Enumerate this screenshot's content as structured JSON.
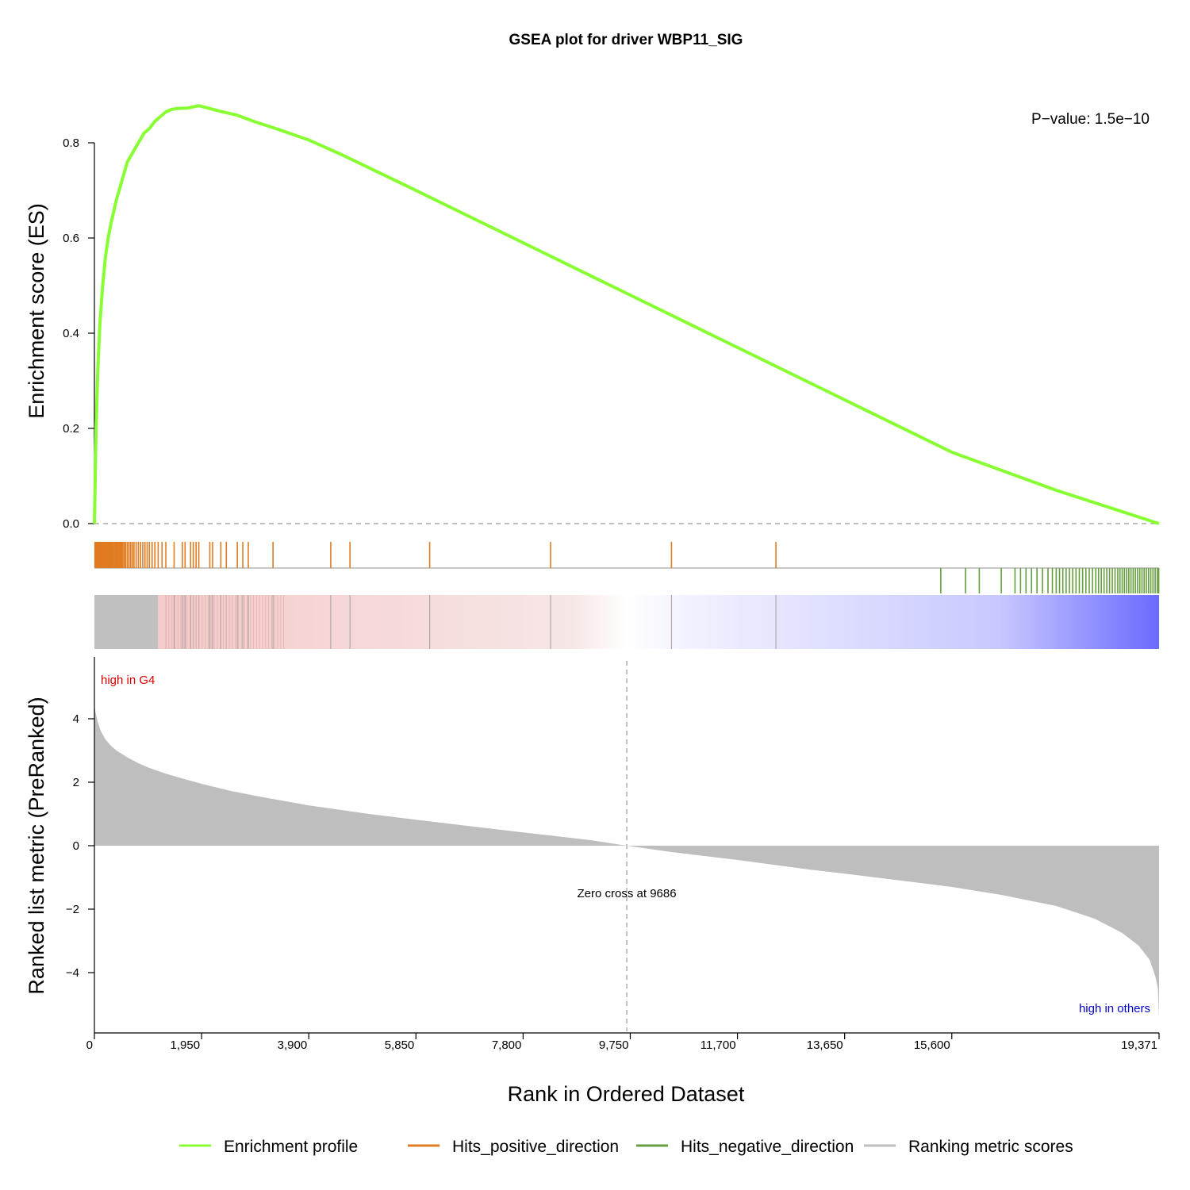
{
  "chart_data": {
    "type": "line",
    "title": "GSEA plot for driver WBP11_SIG",
    "pvalue_text": "P−value: 1.5e−10",
    "es_axis": {
      "label": "Enrichment score (ES)",
      "ylim": [
        0,
        0.88
      ],
      "ticks": [
        "0.0",
        "0.2",
        "0.4",
        "0.6",
        "0.8"
      ]
    },
    "es_profile": {
      "x": [
        0,
        30,
        60,
        100,
        150,
        200,
        250,
        300,
        400,
        500,
        600,
        700,
        800,
        900,
        1000,
        1100,
        1200,
        1300,
        1400,
        1500,
        1700,
        1900,
        2100,
        2300,
        2600,
        2900,
        3300,
        3900,
        4500,
        5850,
        7800,
        9750,
        11700,
        13650,
        15600,
        17500,
        19371
      ],
      "y": [
        0.0,
        0.2,
        0.32,
        0.42,
        0.5,
        0.56,
        0.6,
        0.63,
        0.68,
        0.72,
        0.76,
        0.78,
        0.8,
        0.82,
        0.83,
        0.845,
        0.855,
        0.865,
        0.87,
        0.872,
        0.873,
        0.878,
        0.872,
        0.866,
        0.858,
        0.845,
        0.83,
        0.806,
        0.775,
        0.7,
        0.59,
        0.48,
        0.37,
        0.26,
        0.15,
        0.07,
        0.0
      ]
    },
    "hits_positive": [
      10,
      20,
      30,
      40,
      50,
      60,
      70,
      80,
      95,
      110,
      125,
      140,
      155,
      170,
      185,
      200,
      215,
      230,
      245,
      260,
      275,
      290,
      305,
      320,
      340,
      360,
      380,
      400,
      420,
      440,
      460,
      480,
      500,
      520,
      545,
      570,
      600,
      630,
      660,
      690,
      720,
      760,
      800,
      840,
      880,
      920,
      960,
      1000,
      1050,
      1100,
      1160,
      1230,
      1300,
      1450,
      1600,
      1650,
      1750,
      1800,
      1850,
      1900,
      2100,
      2150,
      2300,
      2400,
      2600,
      2700,
      2800,
      3250,
      4300,
      4650,
      6100,
      8300,
      10500,
      12400
    ],
    "hits_negative": [
      15400,
      15850,
      16100,
      16500,
      16750,
      16850,
      16950,
      17050,
      17150,
      17250,
      17350,
      17430,
      17500,
      17560,
      17620,
      17680,
      17740,
      17800,
      17860,
      17920,
      17980,
      18040,
      18100,
      18160,
      18220,
      18270,
      18320,
      18370,
      18420,
      18470,
      18520,
      18570,
      18620,
      18660,
      18700,
      18740,
      18780,
      18820,
      18860,
      18900,
      18940,
      18980,
      19020,
      19060,
      19100,
      19140,
      19180,
      19220,
      19260,
      19300,
      19340,
      19365
    ],
    "colors": {
      "profile": "#88ff33",
      "hits_positive": "#e07b20",
      "hits_negative": "#659e3c",
      "metric": "#bebebe",
      "heat_high": "#f0a0a0",
      "heat_low": "#6a6aff",
      "high_label": "#dd0000",
      "low_label": "#0000cc"
    },
    "metric_axis": {
      "label": "Ranked list metric (PreRanked)",
      "ylim": [
        -5.8,
        5.8
      ],
      "ticks": [
        "−4",
        "−2",
        "0",
        "2",
        "4"
      ]
    },
    "metric_curve": {
      "x": [
        0,
        20,
        60,
        120,
        200,
        300,
        400,
        600,
        800,
        1000,
        1300,
        1600,
        1950,
        2500,
        3000,
        3900,
        5000,
        5850,
        7000,
        7800,
        9000,
        9686,
        10500,
        11700,
        13000,
        13650,
        15000,
        15600,
        16500,
        17500,
        18200,
        18700,
        19000,
        19200,
        19300,
        19350,
        19371
      ],
      "y": [
        4.45,
        4.2,
        3.9,
        3.6,
        3.35,
        3.15,
        3.0,
        2.78,
        2.6,
        2.45,
        2.27,
        2.12,
        1.95,
        1.72,
        1.55,
        1.27,
        1.0,
        0.82,
        0.58,
        0.42,
        0.18,
        0.0,
        -0.2,
        -0.45,
        -0.75,
        -0.88,
        -1.17,
        -1.3,
        -1.55,
        -1.9,
        -2.3,
        -2.75,
        -3.15,
        -3.6,
        -4.1,
        -4.5,
        -5.4
      ]
    },
    "zero_cross_label": "Zero cross at 9686",
    "zero_cross": 9686,
    "high_label": "high in G4",
    "low_label": "high in others",
    "x_axis": {
      "label": "Rank in Ordered Dataset",
      "xlim": [
        0,
        19371
      ],
      "ticks": [
        "0",
        "1,950",
        "3,900",
        "5,850",
        "7,800",
        "9,750",
        "11,700",
        "13,650",
        "15,600",
        "19,371"
      ]
    },
    "legend": [
      {
        "label": "Enrichment profile",
        "color": "#88ff33"
      },
      {
        "label": "Hits_positive_direction",
        "color": "#e07b20"
      },
      {
        "label": "Hits_negative_direction",
        "color": "#659e3c"
      },
      {
        "label": "Ranking metric scores",
        "color": "#bebebe"
      }
    ]
  }
}
